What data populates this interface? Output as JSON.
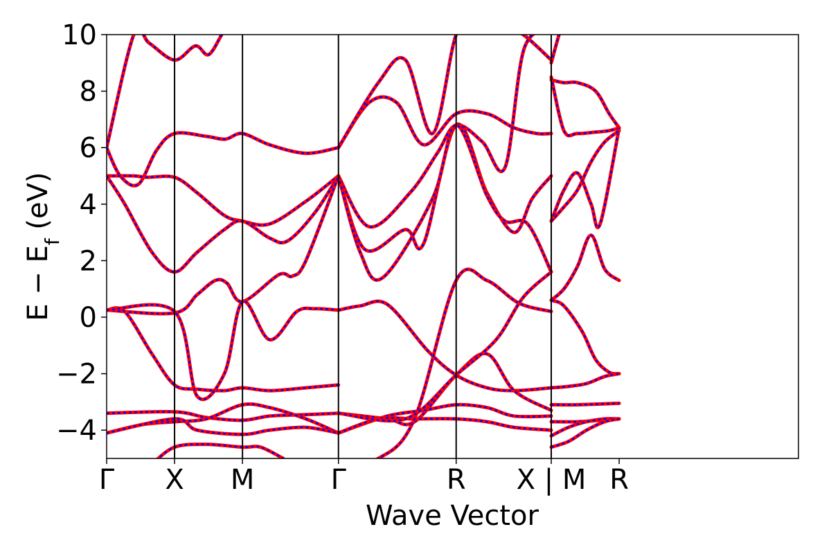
{
  "chart_data": {
    "type": "line",
    "xlabel": "Wave Vector",
    "ylabel": "E − E_f (eV)",
    "ylabel_main": "E − E",
    "ylabel_sub": "f",
    "ylabel_unit": " (eV)",
    "ylim": [
      -5,
      10
    ],
    "yticks": [
      -4,
      -2,
      0,
      2,
      4,
      6,
      8,
      10
    ],
    "ytick_labels": [
      "−4",
      "−2",
      "0",
      "2",
      "4",
      "6",
      "8",
      "10"
    ],
    "xlim": [
      0,
      7.64
    ],
    "kpoints": [
      {
        "label": "Γ",
        "x": 0
      },
      {
        "label": "X",
        "x": 0.75
      },
      {
        "label": "M",
        "x": 1.5
      },
      {
        "label": "Γ",
        "x": 2.56
      },
      {
        "label": "R",
        "x": 3.86
      },
      {
        "label": "X | M",
        "x": 4.91
      },
      {
        "label": "R",
        "x": 5.66
      }
    ],
    "kpoint_dividers": [
      0.75,
      1.5,
      2.56,
      3.86,
      4.91
    ],
    "series_colors": {
      "primary": "#ff0000",
      "overlay": "#0000ff"
    },
    "series": [
      {
        "x": [
          0,
          0.3,
          0.47,
          0.75,
          0.98,
          1.13,
          1.31,
          1.5,
          1.82,
          2.56
        ],
        "y": [
          6.0,
          10.0,
          9.7,
          9.1,
          9.6,
          9.3,
          10.2,
          10.9,
          10.5,
          10.8
        ]
      },
      {
        "x": [
          0,
          0.15,
          0.35,
          0.55,
          0.75,
          1.1,
          1.31,
          1.5,
          1.8,
          2.2,
          2.56
        ],
        "y": [
          6.0,
          5.0,
          4.7,
          5.9,
          6.5,
          6.4,
          6.3,
          6.5,
          6.1,
          5.8,
          6.0
        ]
      },
      {
        "x": [
          0,
          0.3,
          0.45,
          0.75,
          1.0,
          1.3,
          1.5,
          1.8,
          2.2,
          2.56
        ],
        "y": [
          5.0,
          5.0,
          4.95,
          4.95,
          4.4,
          3.6,
          3.4,
          3.3,
          4.1,
          5.0
        ]
      },
      {
        "x": [
          0,
          0.2,
          0.5,
          0.75,
          1.0,
          1.3,
          1.5,
          1.8,
          2.0,
          2.3,
          2.56
        ],
        "y": [
          5.0,
          4.0,
          2.3,
          1.6,
          2.3,
          3.1,
          3.4,
          2.8,
          2.7,
          3.7,
          5.0
        ]
      },
      {
        "x": [
          0,
          0.75,
          1.0,
          1.2,
          1.33,
          1.5,
          1.9,
          2.05,
          2.2,
          2.56
        ],
        "y": [
          0.25,
          0.15,
          0.8,
          1.3,
          1.2,
          0.55,
          1.5,
          1.45,
          2.0,
          5.0
        ]
      },
      {
        "x": [
          0,
          0.2,
          0.5,
          0.75,
          1.0,
          1.3,
          1.5,
          1.8,
          2.2,
          2.56
        ],
        "y": [
          0.25,
          0.2,
          -1.3,
          -2.4,
          -2.55,
          -2.6,
          -2.5,
          -2.6,
          -2.5,
          -2.4
        ]
      },
      {
        "x": [
          0,
          0.75,
          1.0,
          1.3,
          1.5,
          1.8,
          2.1,
          2.3,
          2.56
        ],
        "y": [
          0.25,
          0.2,
          -2.8,
          -2.0,
          0.55,
          -0.8,
          0.2,
          0.3,
          0.25
        ]
      },
      {
        "x": [
          0,
          0.75,
          1.1,
          1.5,
          1.8,
          2.2,
          2.56
        ],
        "y": [
          -3.4,
          -3.35,
          -3.55,
          -3.65,
          -3.5,
          -3.45,
          -3.4
        ]
      },
      {
        "x": [
          0,
          0.4,
          0.75,
          1.1,
          1.5,
          1.8,
          2.2,
          2.56
        ],
        "y": [
          -4.1,
          -3.8,
          -3.7,
          -3.6,
          -3.1,
          -3.2,
          -3.6,
          -4.1
        ]
      },
      {
        "x": [
          0,
          0.75,
          1.0,
          1.5,
          1.8,
          2.2,
          2.56
        ],
        "y": [
          -4.1,
          -3.6,
          -4.0,
          -4.15,
          -4.0,
          -3.9,
          -4.1
        ]
      },
      {
        "x": [
          0.5,
          0.75,
          1.1,
          1.5,
          1.7,
          1.95
        ],
        "y": [
          -5.2,
          -4.6,
          -4.5,
          -4.6,
          -4.6,
          -5.0
        ]
      },
      {
        "x": [
          2.56,
          2.9,
          3.2,
          3.5,
          3.86,
          4.2,
          4.5,
          4.75,
          4.91
        ],
        "y": [
          6.0,
          7.6,
          7.6,
          6.1,
          7.2,
          7.2,
          6.7,
          6.5,
          6.5
        ]
      },
      {
        "x": [
          2.56,
          3.0,
          3.3,
          3.6,
          3.86,
          4.1,
          4.4,
          4.6,
          4.91
        ],
        "y": [
          6.0,
          8.3,
          9.1,
          6.5,
          10.0,
          10.8,
          10.2,
          10.0,
          9.1
        ]
      },
      {
        "x": [
          2.56,
          2.9,
          3.35,
          3.65,
          3.86,
          4.15,
          4.4,
          4.61,
          4.91
        ],
        "y": [
          5.0,
          3.2,
          4.4,
          5.8,
          6.8,
          6.2,
          5.3,
          9.5,
          10.2
        ]
      },
      {
        "x": [
          2.56,
          2.85,
          3.3,
          3.5,
          3.86,
          4.2,
          4.5,
          4.7,
          4.91
        ],
        "y": [
          5.0,
          2.4,
          3.1,
          2.6,
          6.8,
          4.4,
          3.0,
          4.2,
          5.0
        ]
      },
      {
        "x": [
          2.56,
          2.8,
          3.05,
          3.6,
          3.86,
          4.2,
          4.4,
          4.65,
          4.91
        ],
        "y": [
          5.0,
          2.3,
          1.4,
          4.2,
          6.8,
          4.3,
          3.4,
          3.3,
          1.6
        ]
      },
      {
        "x": [
          2.56,
          2.8,
          3.1,
          3.55,
          3.86,
          4.2,
          4.5,
          4.91
        ],
        "y": [
          0.25,
          0.4,
          0.45,
          -1.2,
          -2.05,
          -2.5,
          -2.6,
          -2.5
        ]
      },
      {
        "x": [
          2.56,
          3.1,
          3.4,
          3.86,
          4.2,
          4.5,
          4.91
        ],
        "y": [
          -3.4,
          -3.6,
          -3.7,
          -2.05,
          -1.3,
          -2.6,
          -3.3
        ]
      },
      {
        "x": [
          2.56,
          3.1,
          3.5,
          3.86,
          4.2,
          4.5,
          4.91
        ],
        "y": [
          -4.1,
          -3.5,
          -3.3,
          -3.1,
          -3.2,
          -3.5,
          -3.5
        ]
      },
      {
        "x": [
          2.56,
          3.0,
          3.4,
          3.86,
          4.2,
          4.5,
          4.91
        ],
        "y": [
          -4.1,
          -3.6,
          -3.6,
          -3.6,
          -3.7,
          -3.9,
          -4.0
        ]
      },
      {
        "x": [
          2.56,
          3.0,
          3.4,
          3.86,
          4.2,
          4.55,
          4.91
        ],
        "y": [
          -5.2,
          -5.0,
          -3.6,
          1.3,
          1.3,
          0.5,
          0.2
        ]
      },
      {
        "x": [
          2.56,
          3.3,
          3.86,
          4.3,
          4.6,
          4.91
        ],
        "y": [
          -3.4,
          -3.6,
          -2.05,
          -0.8,
          0.7,
          1.6
        ]
      },
      {
        "x": [
          4.91,
          5.05,
          5.2,
          5.35,
          5.5,
          5.66
        ],
        "y": [
          9.0,
          10.5,
          11.0,
          11.0,
          10.6,
          10.8
        ]
      },
      {
        "x": [
          4.91,
          5.05,
          5.2,
          5.4,
          5.55,
          5.66
        ],
        "y": [
          8.4,
          8.3,
          8.3,
          8.0,
          7.2,
          6.7
        ]
      },
      {
        "x": [
          4.91,
          5.05,
          5.2,
          5.4,
          5.55,
          5.66
        ],
        "y": [
          8.5,
          6.6,
          6.5,
          6.55,
          6.6,
          6.7
        ]
      },
      {
        "x": [
          4.91,
          5.05,
          5.2,
          5.35,
          5.45,
          5.66
        ],
        "y": [
          3.4,
          4.5,
          5.1,
          4.0,
          3.3,
          6.7
        ]
      },
      {
        "x": [
          4.91,
          5.05,
          5.2,
          5.35,
          5.5,
          5.66
        ],
        "y": [
          3.4,
          3.9,
          4.5,
          5.5,
          6.2,
          6.6
        ]
      },
      {
        "x": [
          4.91,
          5.05,
          5.2,
          5.35,
          5.5,
          5.66
        ],
        "y": [
          0.6,
          1.0,
          1.8,
          2.9,
          1.7,
          1.3
        ]
      },
      {
        "x": [
          4.91,
          5.05,
          5.25,
          5.4,
          5.55,
          5.66
        ],
        "y": [
          0.6,
          0.4,
          -0.5,
          -1.5,
          -1.95,
          -2.0
        ]
      },
      {
        "x": [
          4.91,
          5.1,
          5.3,
          5.5,
          5.66
        ],
        "y": [
          -2.5,
          -2.45,
          -2.35,
          -2.1,
          -2.0
        ]
      },
      {
        "x": [
          4.91,
          5.2,
          5.66
        ],
        "y": [
          -3.1,
          -3.1,
          -3.05
        ]
      },
      {
        "x": [
          4.91,
          5.2,
          5.45,
          5.66
        ],
        "y": [
          -3.7,
          -3.7,
          -3.65,
          -3.6
        ]
      },
      {
        "x": [
          4.91,
          5.1,
          5.3,
          5.5,
          5.66
        ],
        "y": [
          -4.2,
          -3.9,
          -3.7,
          -3.6,
          -3.6
        ]
      },
      {
        "x": [
          4.91,
          5.1,
          5.3,
          5.5,
          5.66
        ],
        "y": [
          -4.6,
          -4.4,
          -4.0,
          -3.7,
          -3.6
        ]
      }
    ]
  }
}
